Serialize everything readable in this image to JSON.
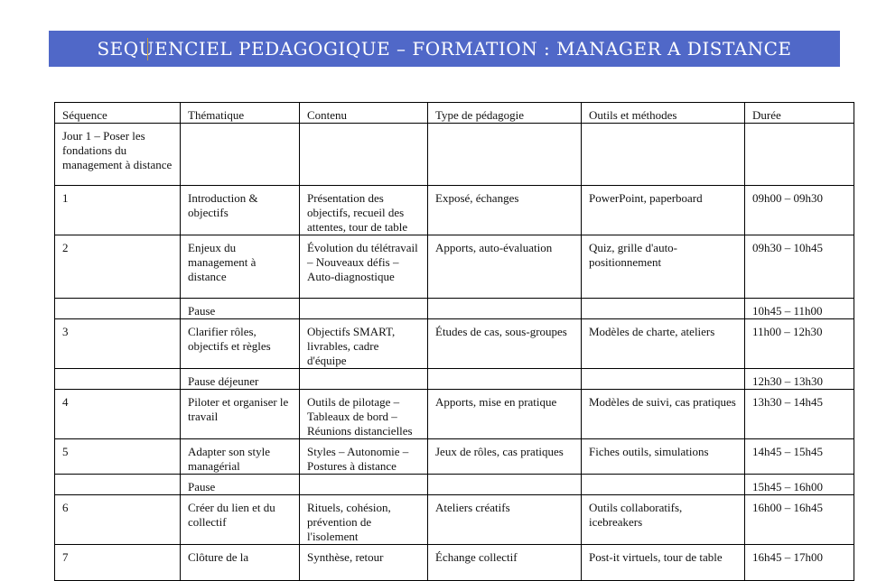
{
  "document": {
    "title": "SEQUENCIEL PEDAGOGIQUE – FORMATION : MANAGER A DISTANCE",
    "title_background": "#5068c8",
    "table": {
      "headers": [
        "Séquence",
        "Thématique",
        "Contenu",
        "Type de pédagogie",
        "Outils et méthodes",
        "Durée"
      ],
      "rows": [
        [
          "Jour 1 – Poser les fondations du management à distance",
          "",
          "",
          "",
          "",
          ""
        ],
        [
          "1",
          "Introduction & objectifs",
          "Présentation des objectifs, recueil des attentes, tour de table",
          "Exposé, échanges",
          "PowerPoint, paperboard",
          "09h00 – 09h30"
        ],
        [
          "2",
          "Enjeux du management à distance",
          "Évolution du télétravail – Nouveaux défis – Auto-diagnostique",
          "Apports, auto-évaluation",
          "Quiz, grille d'auto-positionnement",
          "09h30 – 10h45"
        ],
        [
          "",
          "Pause",
          "",
          "",
          "",
          "10h45 – 11h00"
        ],
        [
          "3",
          "Clarifier rôles, objectifs et règles",
          "Objectifs SMART, livrables, cadre d'équipe",
          "Études de cas, sous-groupes",
          "Modèles de charte, ateliers",
          "11h00 – 12h30"
        ],
        [
          "",
          "Pause déjeuner",
          "",
          "",
          "",
          "12h30 – 13h30"
        ],
        [
          "4",
          "Piloter et organiser le travail",
          "Outils de pilotage – Tableaux de bord – Réunions distancielles",
          "Apports, mise en pratique",
          "Modèles de suivi, cas pratiques",
          "13h30 – 14h45"
        ],
        [
          "5",
          "Adapter son style managérial",
          "Styles – Autonomie – Postures à distance",
          "Jeux de rôles, cas pratiques",
          "Fiches outils, simulations",
          "14h45 – 15h45"
        ],
        [
          "",
          "Pause",
          "",
          "",
          "",
          "15h45 – 16h00"
        ],
        [
          "6",
          "Créer du lien et du collectif",
          "Rituels, cohésion, prévention de l'isolement",
          "Ateliers créatifs",
          "Outils collaboratifs, icebreakers",
          "16h00 – 16h45"
        ],
        [
          "7",
          "Clôture de la",
          "Synthèse, retour",
          "Échange collectif",
          "Post-it virtuels, tour de table",
          "16h45 – 17h00"
        ]
      ]
    }
  }
}
